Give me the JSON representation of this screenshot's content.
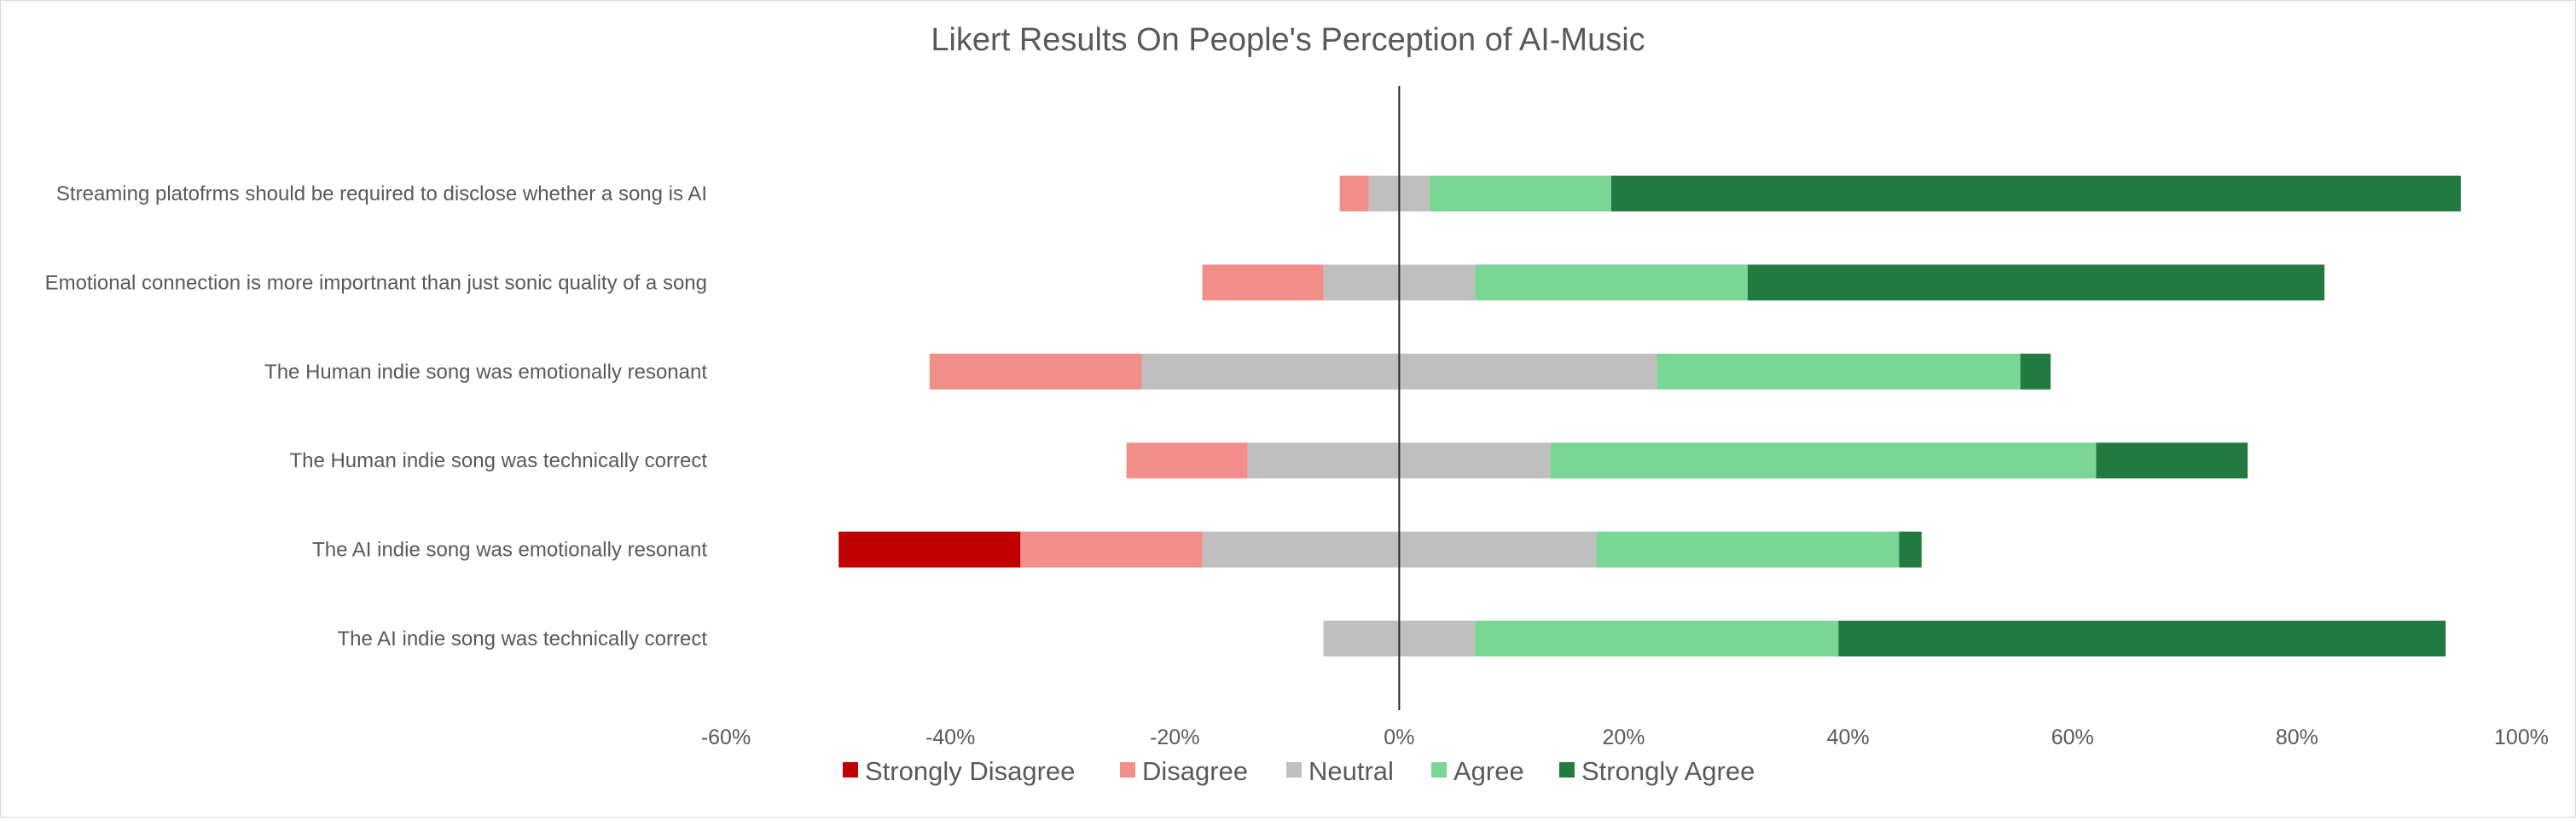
{
  "chart_data": {
    "type": "bar",
    "orientation": "horizontal",
    "stacked": "diverging",
    "title": "Likert Results On People's Perception of AI-Music",
    "xlabel": "",
    "ylabel": "",
    "xlim": [
      -60,
      100
    ],
    "x_ticks": [
      -60,
      -40,
      -20,
      0,
      20,
      40,
      60,
      80,
      100
    ],
    "x_tick_labels": [
      "-60%",
      "-40%",
      "-20%",
      "0%",
      "20%",
      "40%",
      "60%",
      "80%",
      "100%"
    ],
    "grid": false,
    "legend_position": "bottom",
    "categories": [
      "Streaming platofrms should be required to disclose whether a song is AI",
      "Emotional connection is more importnant than just sonic quality of a song",
      "The Human indie song was emotionally resonant",
      "The Human indie song was technically correct",
      "The AI indie song was emotionally resonant",
      "The AI indie song was technically correct"
    ],
    "series": [
      {
        "name": "Strongly Disagree",
        "color": "#c00000",
        "values": [
          0,
          0,
          0,
          0,
          16.2,
          0
        ]
      },
      {
        "name": "Disagree",
        "color": "#f28e89",
        "values": [
          2.6,
          10.8,
          18.9,
          10.8,
          16.2,
          0
        ]
      },
      {
        "name": "Neutral",
        "color": "#bfbfbf",
        "values": [
          5.4,
          13.5,
          45.9,
          27.0,
          35.1,
          13.5
        ]
      },
      {
        "name": "Agree",
        "color": "#7ad694",
        "values": [
          16.2,
          24.3,
          32.4,
          48.6,
          27.0,
          32.4
        ]
      },
      {
        "name": "Strongly Agree",
        "color": "#237a41",
        "values": [
          75.7,
          51.4,
          2.7,
          13.5,
          2.0,
          54.1
        ]
      }
    ]
  }
}
